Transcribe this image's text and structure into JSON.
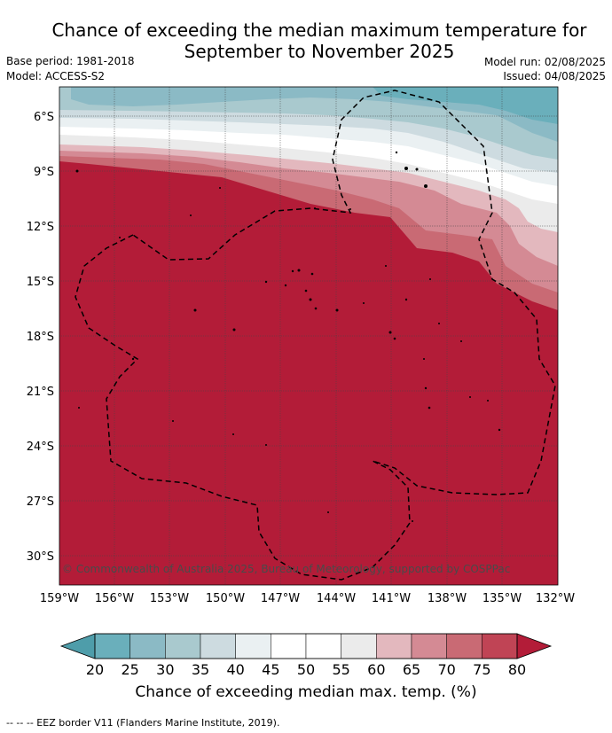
{
  "header": {
    "title_line1": "Chance of exceeding the median maximum temperature for",
    "title_line2": "September to November 2025",
    "base_period": "Base period: 1981-2018",
    "model": "Model: ACCESS-S2",
    "model_run": "Model run: 02/08/2025",
    "issued": "Issued: 04/08/2025"
  },
  "map": {
    "lat_labels": [
      "6°S",
      "9°S",
      "12°S",
      "15°S",
      "18°S",
      "21°S",
      "24°S",
      "27°S",
      "30°S"
    ],
    "lon_labels": [
      "159°W",
      "156°W",
      "153°W",
      "150°W",
      "147°W",
      "144°W",
      "141°W",
      "138°W",
      "135°W",
      "132°W"
    ],
    "copyright": "© Commonwealth of Australia 2025, Bureau of Meteorology, supported by COSPPac",
    "dominant_color": "#b31c38"
  },
  "colorbar": {
    "ticks": [
      "20",
      "25",
      "30",
      "35",
      "40",
      "45",
      "50",
      "55",
      "60",
      "65",
      "70",
      "75",
      "80"
    ],
    "colors": [
      "#4e9daa",
      "#6aafbb",
      "#8bbac5",
      "#a9c9ce",
      "#cddbe0",
      "#eaf0f2",
      "#ffffff",
      "#ffffff",
      "#ebebeb",
      "#e3b8be",
      "#d48a94",
      "#c96a74",
      "#c04455",
      "#b31c38"
    ],
    "title": "Chance of exceeding median max. temp. (%)"
  },
  "footer": {
    "legend_text": "-- -- -- EEZ border V11 (Flanders Marine Institute, 2019)."
  }
}
